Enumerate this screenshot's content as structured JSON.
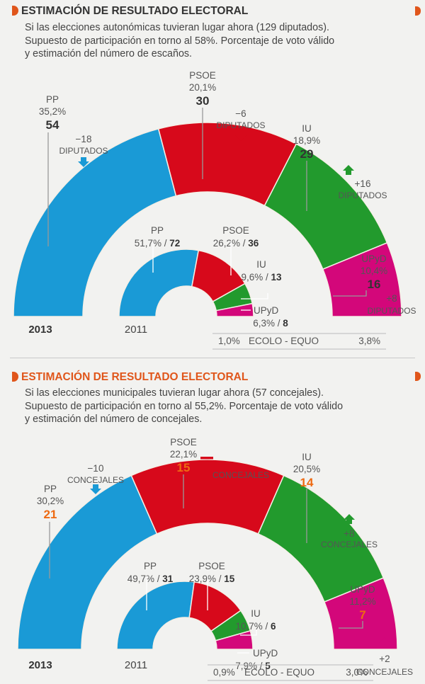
{
  "colors": {
    "PP": "#1a9ad6",
    "PSOE": "#d7091b",
    "IU": "#229a2d",
    "UPyD": "#d3077a",
    "accent": "#e0561b",
    "seat_orange": "#ee6a12",
    "text": "#444444"
  },
  "chart_data": [
    {
      "type": "pie",
      "subtype": "semicircle-donut",
      "title": "ESTIMACIÓN DE RESULTADO ELECTORAL",
      "title_color": "#333333",
      "description": [
        "Si las elecciones autonómicas tuvieran lugar ahora (129 diputados).",
        "Supuesto de participación en torno al 58%. Porcentaje de voto válido",
        "y estimación del número de escaños."
      ],
      "seat_unit": "DIPUTADOS",
      "total_seats": 129,
      "seat_color": "dark",
      "rings": [
        {
          "year": "2013",
          "series": [
            {
              "party": "PP",
              "percent": "35,2%",
              "seats": 54,
              "change": "−18",
              "change_dir": "down"
            },
            {
              "party": "PSOE",
              "percent": "20,1%",
              "seats": 30,
              "change": "−6",
              "change_dir": "down"
            },
            {
              "party": "IU",
              "percent": "18,9%",
              "seats": 29,
              "change": "+16",
              "change_dir": "up"
            },
            {
              "party": "UPyD",
              "percent": "10,4%",
              "seats": 16,
              "change": "+8",
              "change_dir": "up"
            }
          ]
        },
        {
          "year": "2011",
          "series": [
            {
              "party": "PP",
              "percent": "51,7%",
              "seats": 72
            },
            {
              "party": "PSOE",
              "percent": "26,2%",
              "seats": 36
            },
            {
              "party": "IU",
              "percent": "9,6%",
              "seats": 13
            },
            {
              "party": "UPyD",
              "percent": "6,3%",
              "seats": 8
            }
          ]
        }
      ],
      "footnote": {
        "left": "1,0%",
        "label": "ECOLO - EQUO",
        "right": "3,8%"
      }
    },
    {
      "type": "pie",
      "subtype": "semicircle-donut",
      "title": "ESTIMACIÓN DE RESULTADO ELECTORAL",
      "title_color": "#e0561b",
      "description": [
        "Si las elecciones municipales tuvieran lugar ahora (57 concejales).",
        "Supuesto de participación en torno al 55,2%. Porcentaje de voto válido",
        "y estimación del número de concejales."
      ],
      "seat_unit": "CONCEJALES",
      "total_seats": 57,
      "seat_color": "orange",
      "rings": [
        {
          "year": "2013",
          "series": [
            {
              "party": "PP",
              "percent": "30,2%",
              "seats": 21,
              "change": "−10",
              "change_dir": "down"
            },
            {
              "party": "PSOE",
              "percent": "22,1%",
              "seats": 15,
              "change": "=",
              "change_dir": "equal"
            },
            {
              "party": "IU",
              "percent": "20,5%",
              "seats": 14,
              "change": "+8",
              "change_dir": "up"
            },
            {
              "party": "UPyD",
              "percent": "11,2%",
              "seats": 7,
              "change": "+2",
              "change_dir": "up"
            }
          ]
        },
        {
          "year": "2011",
          "series": [
            {
              "party": "PP",
              "percent": "49,7%",
              "seats": 31
            },
            {
              "party": "PSOE",
              "percent": "23,9%",
              "seats": 15
            },
            {
              "party": "IU",
              "percent": "10,7%",
              "seats": 6
            },
            {
              "party": "UPyD",
              "percent": "7,9%",
              "seats": 5
            }
          ]
        }
      ],
      "footnote": {
        "left": "0,9%",
        "label": "ECOLO - EQUO",
        "right": "3,0%"
      }
    }
  ]
}
